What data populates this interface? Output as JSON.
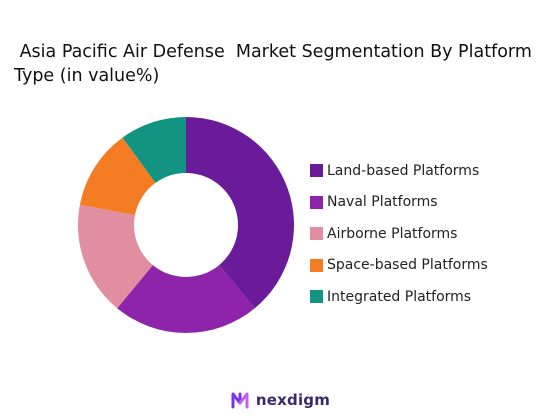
{
  "chart_data": {
    "type": "pie",
    "title": " Asia Pacific Air Defense  Market Segmentation By Platform Type (in value%)",
    "donut": true,
    "categories": [
      "Land-based Platforms",
      "Naval Platforms",
      "Airborne Platforms",
      "Space-based Platforms",
      "Integrated Platforms"
    ],
    "values": [
      39,
      22,
      17,
      12,
      10
    ],
    "colors": [
      "#6a1b9a",
      "#8e24aa",
      "#e08ea0",
      "#f57c22",
      "#139483"
    ],
    "legend_position": "right"
  },
  "branding": {
    "logo_text": "nexdigm",
    "logo_icon": "nexdigm-logo-icon"
  }
}
